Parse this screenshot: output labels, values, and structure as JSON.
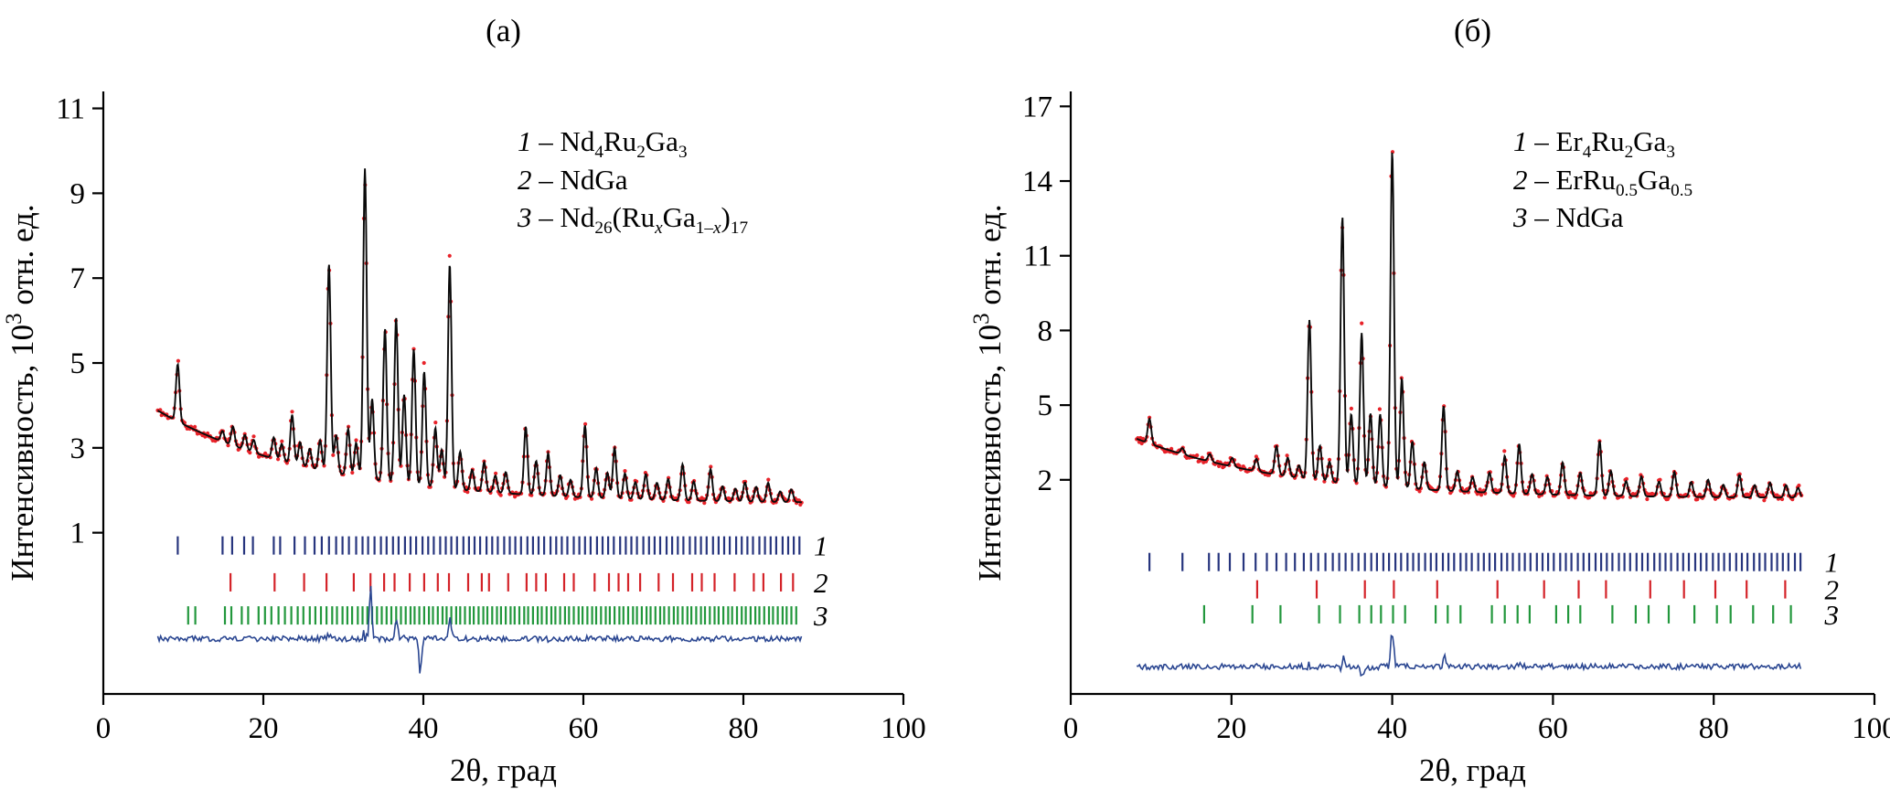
{
  "figure": {
    "background": "#ffffff",
    "colors": {
      "observed": "#e8232a",
      "calculated": "#0a0a0a",
      "phase1_ticks": "#27357e",
      "phase2_ticks": "#d42329",
      "phase3_ticks": "#22973c",
      "difference": "#2a4691"
    }
  },
  "chart_data": [
    {
      "type": "scatter",
      "subtype": "xrd-rietveld-profile",
      "panel_label": "(а)",
      "xlabel": "2θ, град",
      "ylabel_plain": "Интенсивность, 10³ отн. ед.",
      "ylabel_segments": [
        {
          "t": "Интенсивность, 10"
        },
        {
          "t": "3",
          "sup": true
        },
        {
          "t": " отн. ед."
        }
      ],
      "xlim": [
        0,
        100
      ],
      "ylim": [
        -2.8,
        11.4
      ],
      "xticks": [
        0,
        20,
        40,
        60,
        80,
        100
      ],
      "yticks": [
        1,
        3,
        5,
        7,
        9,
        11
      ],
      "grid": false,
      "legend": [
        {
          "segments": [
            {
              "t": "1",
              "i": true
            },
            {
              "t": " – Nd"
            },
            {
              "t": "4",
              "sub": true
            },
            {
              "t": "Ru"
            },
            {
              "t": "2",
              "sub": true
            },
            {
              "t": "Ga"
            },
            {
              "t": "3",
              "sub": true
            }
          ]
        },
        {
          "segments": [
            {
              "t": "2",
              "i": true
            },
            {
              "t": " – NdGa"
            }
          ]
        },
        {
          "segments": [
            {
              "t": "3",
              "i": true
            },
            {
              "t": " – Nd"
            },
            {
              "t": "26",
              "sub": true
            },
            {
              "t": "(Ru"
            },
            {
              "t": "x",
              "sub": true,
              "i": true
            },
            {
              "t": "Ga"
            },
            {
              "t": "1–",
              "sub": true
            },
            {
              "t": "x",
              "sub": true,
              "i": true
            },
            {
              "t": ")"
            },
            {
              "t": "17",
              "sub": true
            }
          ]
        }
      ],
      "series": {
        "x_range": [
          6.8,
          87.3
        ],
        "background": {
          "base": 1.68,
          "amp": 2.2,
          "x0": 6.8,
          "decay": 20
        },
        "peak_sigma": 0.22,
        "peaks": [
          [
            9.3,
            1.35
          ],
          [
            14.9,
            0.25
          ],
          [
            16.2,
            0.45
          ],
          [
            17.7,
            0.35
          ],
          [
            18.8,
            0.3
          ],
          [
            21.3,
            0.5
          ],
          [
            22.3,
            0.4
          ],
          [
            23.6,
            1.15
          ],
          [
            24.6,
            0.55
          ],
          [
            25.8,
            0.45
          ],
          [
            27.1,
            0.7
          ],
          [
            28.2,
            4.9
          ],
          [
            29.1,
            0.9
          ],
          [
            30.6,
            1.1
          ],
          [
            31.6,
            0.8
          ],
          [
            32.7,
            7.3
          ],
          [
            33.6,
            1.9
          ],
          [
            35.2,
            3.6
          ],
          [
            36.6,
            3.9
          ],
          [
            37.6,
            2.1
          ],
          [
            38.8,
            3.2
          ],
          [
            40.1,
            2.7
          ],
          [
            41.5,
            1.4
          ],
          [
            42.3,
            0.9
          ],
          [
            43.3,
            5.3
          ],
          [
            44.6,
            0.9
          ],
          [
            46.1,
            0.5
          ],
          [
            47.6,
            0.7
          ],
          [
            49.0,
            0.4
          ],
          [
            50.3,
            0.5
          ],
          [
            52.8,
            1.6
          ],
          [
            54.1,
            0.8
          ],
          [
            55.6,
            1.0
          ],
          [
            57.1,
            0.5
          ],
          [
            58.4,
            0.4
          ],
          [
            60.2,
            1.7
          ],
          [
            61.6,
            0.7
          ],
          [
            63.0,
            0.6
          ],
          [
            63.9,
            1.2
          ],
          [
            65.2,
            0.6
          ],
          [
            66.5,
            0.4
          ],
          [
            67.8,
            0.6
          ],
          [
            69.2,
            0.4
          ],
          [
            70.6,
            0.5
          ],
          [
            72.4,
            0.85
          ],
          [
            73.8,
            0.45
          ],
          [
            75.9,
            0.75
          ],
          [
            77.4,
            0.35
          ],
          [
            79.0,
            0.3
          ],
          [
            80.2,
            0.45
          ],
          [
            81.6,
            0.35
          ],
          [
            83.1,
            0.45
          ],
          [
            84.6,
            0.25
          ],
          [
            86.0,
            0.3
          ]
        ]
      },
      "phase_rows": [
        {
          "label": "1",
          "color": "phase1_ticks",
          "y": 0.7,
          "ticks": [
            9.3,
            14.9,
            16.1,
            17.6,
            18.7,
            21.3,
            22.1,
            23.9,
            25.2,
            26.4,
            27.3,
            28.2,
            29.1,
            29.9,
            30.7,
            31.6,
            32.4,
            33.1,
            33.9,
            34.7,
            35.4,
            36.2,
            36.9,
            37.7,
            38.4,
            39.1,
            39.9,
            40.6,
            41.3,
            42.1,
            42.8,
            43.5,
            44.2,
            45.0,
            45.7,
            46.4,
            47.1,
            47.9,
            48.6,
            49.3,
            50.1,
            50.8,
            51.5,
            52.2,
            53.0,
            53.7,
            54.4,
            55.1,
            55.9,
            56.6,
            57.3,
            58.0,
            58.8,
            59.5,
            60.2,
            60.9,
            61.7,
            62.4,
            63.1,
            63.8,
            64.6,
            65.3,
            66.0,
            66.7,
            67.5,
            68.2,
            68.9,
            69.6,
            70.4,
            71.1,
            71.8,
            72.5,
            73.3,
            74.0,
            74.7,
            75.4,
            76.2,
            76.9,
            77.6,
            78.3,
            79.1,
            79.8,
            80.5,
            81.2,
            82.0,
            82.7,
            83.4,
            84.1,
            84.9,
            85.6,
            86.3,
            87.0
          ]
        },
        {
          "label": "2",
          "color": "phase2_ticks",
          "y": -0.17,
          "ticks": [
            15.9,
            21.4,
            25.1,
            27.9,
            31.3,
            33.4,
            35.1,
            36.4,
            38.3,
            40.1,
            41.8,
            43.2,
            45.6,
            47.3,
            48.2,
            50.6,
            52.9,
            54.1,
            55.3,
            57.6,
            58.8,
            61.4,
            63.2,
            64.4,
            65.6,
            67.1,
            69.4,
            71.2,
            73.6,
            74.8,
            76.4,
            78.9,
            81.3,
            82.5,
            84.7,
            86.2
          ]
        },
        {
          "label": "3",
          "color": "phase3_ticks",
          "y": -0.95,
          "ticks": [
            10.6,
            11.5,
            15.2,
            16.0,
            17.3,
            18.1,
            19.4,
            20.2,
            21.0,
            21.9,
            22.7,
            23.5,
            24.3,
            25.0,
            25.8,
            26.5,
            27.2,
            27.9,
            28.6,
            29.2,
            29.9,
            30.5,
            31.1,
            31.8,
            32.4,
            33.0,
            33.6,
            34.2,
            34.8,
            35.4,
            36.0,
            36.6,
            37.2,
            37.8,
            38.4,
            38.9,
            39.5,
            40.1,
            40.7,
            41.2,
            41.8,
            42.4,
            42.9,
            43.5,
            44.1,
            44.6,
            45.2,
            45.8,
            46.3,
            46.9,
            47.5,
            48.0,
            48.6,
            49.2,
            49.7,
            50.3,
            50.9,
            51.4,
            52.0,
            52.6,
            53.1,
            53.7,
            54.3,
            54.8,
            55.4,
            56.0,
            56.5,
            57.1,
            57.7,
            58.2,
            58.8,
            59.4,
            59.9,
            60.5,
            61.1,
            61.6,
            62.2,
            62.8,
            63.3,
            63.9,
            64.5,
            65.0,
            65.6,
            66.2,
            66.7,
            67.3,
            67.9,
            68.4,
            69.0,
            69.6,
            70.1,
            70.7,
            71.3,
            71.8,
            72.4,
            73.0,
            73.5,
            74.1,
            74.7,
            75.2,
            75.8,
            76.4,
            76.9,
            77.5,
            78.1,
            78.6,
            79.2,
            79.8,
            80.3,
            80.9,
            81.5,
            82.0,
            82.6,
            83.2,
            83.7,
            84.3,
            84.9,
            85.4,
            86.0,
            86.6
          ]
        }
      ],
      "difference": {
        "baseline": -1.5,
        "spikes": [
          [
            33.4,
            1.2
          ],
          [
            36.6,
            0.45
          ],
          [
            39.6,
            -0.85
          ],
          [
            43.3,
            0.55
          ]
        ]
      }
    },
    {
      "type": "scatter",
      "subtype": "xrd-rietveld-profile",
      "panel_label": "(б)",
      "xlabel": "2θ, град",
      "ylabel_plain": "Интенсивность, 10³ отн. ед.",
      "ylabel_segments": [
        {
          "t": "Интенсивность, 10"
        },
        {
          "t": "3",
          "sup": true
        },
        {
          "t": " отн. ед."
        }
      ],
      "xlim": [
        0,
        100
      ],
      "ylim": [
        -6.6,
        17.6
      ],
      "xticks": [
        0,
        20,
        40,
        60,
        80,
        100
      ],
      "yticks": [
        2,
        5,
        8,
        11,
        14,
        17
      ],
      "grid": false,
      "legend": [
        {
          "segments": [
            {
              "t": "1",
              "i": true
            },
            {
              "t": " – Er"
            },
            {
              "t": "4",
              "sub": true
            },
            {
              "t": "Ru"
            },
            {
              "t": "2",
              "sub": true
            },
            {
              "t": "Ga"
            },
            {
              "t": "3",
              "sub": true
            }
          ]
        },
        {
          "segments": [
            {
              "t": "2",
              "i": true
            },
            {
              "t": " – ErRu"
            },
            {
              "t": "0.5",
              "sub": true
            },
            {
              "t": "Ga"
            },
            {
              "t": "0.5",
              "sub": true
            }
          ]
        },
        {
          "segments": [
            {
              "t": "3",
              "i": true
            },
            {
              "t": " – NdGa"
            }
          ]
        }
      ],
      "series": {
        "x_range": [
          8.2,
          91.0
        ],
        "background": {
          "base": 1.25,
          "amp": 2.4,
          "x0": 8.2,
          "decay": 19
        },
        "peak_sigma": 0.22,
        "peaks": [
          [
            9.8,
            1.0
          ],
          [
            13.9,
            0.25
          ],
          [
            17.3,
            0.3
          ],
          [
            20.1,
            0.35
          ],
          [
            23.1,
            0.5
          ],
          [
            25.6,
            1.15
          ],
          [
            27.0,
            0.75
          ],
          [
            28.4,
            0.5
          ],
          [
            29.7,
            6.4
          ],
          [
            31.0,
            1.4
          ],
          [
            32.2,
            0.8
          ],
          [
            33.8,
            10.7
          ],
          [
            34.9,
            2.8
          ],
          [
            36.2,
            6.1
          ],
          [
            37.3,
            2.9
          ],
          [
            38.5,
            2.9
          ],
          [
            40.0,
            13.5
          ],
          [
            41.2,
            4.4
          ],
          [
            42.5,
            1.9
          ],
          [
            44.0,
            1.1
          ],
          [
            46.4,
            3.4
          ],
          [
            48.1,
            0.8
          ],
          [
            50.0,
            0.6
          ],
          [
            52.1,
            0.8
          ],
          [
            54.0,
            1.5
          ],
          [
            55.8,
            2.0
          ],
          [
            57.4,
            0.8
          ],
          [
            59.3,
            0.7
          ],
          [
            61.2,
            1.3
          ],
          [
            63.4,
            0.9
          ],
          [
            65.8,
            2.2
          ],
          [
            67.2,
            1.0
          ],
          [
            69.1,
            0.6
          ],
          [
            71.0,
            0.8
          ],
          [
            73.2,
            0.6
          ],
          [
            75.1,
            1.0
          ],
          [
            77.2,
            0.6
          ],
          [
            79.3,
            0.7
          ],
          [
            81.2,
            0.5
          ],
          [
            83.2,
            0.9
          ],
          [
            85.1,
            0.5
          ],
          [
            87.0,
            0.6
          ],
          [
            89.0,
            0.5
          ],
          [
            90.5,
            0.4
          ]
        ]
      },
      "phase_rows": [
        {
          "label": "1",
          "color": "phase1_ticks",
          "y": -1.3,
          "ticks": [
            9.8,
            13.9,
            17.2,
            18.4,
            19.8,
            21.5,
            23.0,
            24.4,
            25.6,
            26.8,
            27.9,
            29.0,
            29.9,
            30.8,
            31.7,
            32.6,
            33.4,
            34.2,
            35.0,
            35.8,
            36.6,
            37.4,
            38.1,
            38.9,
            39.6,
            40.4,
            41.1,
            41.9,
            42.6,
            43.3,
            44.1,
            44.8,
            45.5,
            46.3,
            47.0,
            47.7,
            48.5,
            49.2,
            49.9,
            50.7,
            51.4,
            52.1,
            52.8,
            53.6,
            54.3,
            55.0,
            55.8,
            56.5,
            57.2,
            58.0,
            58.7,
            59.4,
            60.1,
            60.9,
            61.6,
            62.3,
            63.1,
            63.8,
            64.5,
            65.3,
            66.0,
            66.7,
            67.4,
            68.2,
            68.9,
            69.6,
            70.4,
            71.1,
            71.8,
            72.6,
            73.3,
            74.0,
            74.7,
            75.5,
            76.2,
            76.9,
            77.7,
            78.4,
            79.1,
            79.9,
            80.6,
            81.3,
            82.0,
            82.8,
            83.5,
            84.2,
            85.0,
            85.7,
            86.4,
            87.2,
            87.9,
            88.6,
            89.3,
            90.1,
            90.8
          ]
        },
        {
          "label": "2",
          "color": "phase2_ticks",
          "y": -2.4,
          "ticks": [
            23.2,
            30.6,
            36.6,
            40.2,
            45.6,
            53.1,
            58.9,
            63.2,
            66.6,
            72.1,
            76.3,
            80.2,
            84.1,
            88.9
          ]
        },
        {
          "label": "3",
          "color": "phase3_ticks",
          "y": -3.4,
          "ticks": [
            16.6,
            22.6,
            26.1,
            30.9,
            33.5,
            35.9,
            37.4,
            38.6,
            40.1,
            41.6,
            45.4,
            46.9,
            48.5,
            52.4,
            54.0,
            55.6,
            57.1,
            60.4,
            61.9,
            63.4,
            67.4,
            70.3,
            71.9,
            74.4,
            77.6,
            80.4,
            82.1,
            84.9,
            87.4,
            89.6
          ]
        }
      ],
      "difference": {
        "baseline": -5.5,
        "spikes": [
          [
            34.0,
            0.5
          ],
          [
            36.3,
            -0.45
          ],
          [
            40.0,
            1.5
          ],
          [
            46.5,
            0.4
          ]
        ]
      }
    }
  ]
}
